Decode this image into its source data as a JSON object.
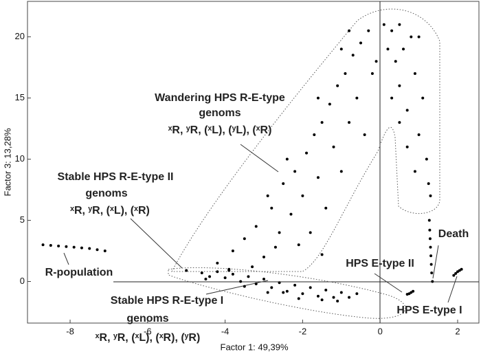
{
  "chart_data": {
    "type": "scatter",
    "xlabel": "Factor 1: 49,39%",
    "ylabel": "Factor 3: 13,28%",
    "xlim": [
      -9.1,
      2.55
    ],
    "ylim": [
      -3.4,
      22.9
    ],
    "xticks": [
      -8,
      -6,
      -4,
      -2,
      0,
      2
    ],
    "yticks": [
      0,
      5,
      10,
      15,
      20
    ],
    "color": "#000000",
    "annotations": [
      "Wandering HPS R-E-type",
      "genoms",
      "ˣR, ʸR, (ˣL), (ʸL), (ˣR)",
      "Stable HPS R-E-type II",
      "genoms",
      "ˣR, ʸR, (ˣL), (ˣR)",
      "R-population",
      "HPS E-type II",
      "Death",
      "Stable HPS R-E-type I",
      "genoms",
      "ˣR, ʸR, (ˣL), (ˣR), (ʸR)",
      "HPS E-type I"
    ],
    "x": [
      -8.7,
      -8.5,
      -8.3,
      -8.1,
      -7.9,
      -7.7,
      -7.5,
      -7.3,
      -7.1,
      -5,
      -4.6,
      -4.4,
      -4.2,
      -4,
      -3.8,
      -3.6,
      -3.4,
      -3.2,
      -3,
      -2.8,
      -2.6,
      -2.4,
      -2.2,
      -2,
      -1.8,
      -1.6,
      -1.4,
      -1.2,
      -1,
      -0.8,
      -0.6,
      -3.5,
      -2.5,
      -1.5,
      -4.5,
      -3.9,
      -2.9,
      -2.1,
      -1.1,
      -4.2,
      -3.8,
      -3.5,
      -3.2,
      -3.0,
      -2.8,
      -2.6,
      -2.5,
      -2.3,
      -2.2,
      -2,
      -1.9,
      -1.8,
      -1.7,
      -1.6,
      -1.5,
      -1.4,
      -1.3,
      -1.2,
      -1.1,
      -1,
      -0.9,
      -0.8,
      -0.7,
      -0.6,
      -0.5,
      -0.4,
      -0.3,
      -0.2,
      -0.1,
      -3.3,
      -2.7,
      -2.1,
      -1.5,
      -3.9,
      -2.4,
      -1.6,
      -1.0,
      -0.8,
      -2.9,
      0.1,
      0.2,
      0.3,
      0.4,
      0.5,
      0.5,
      0.6,
      0.7,
      0.8,
      0.9,
      1.0,
      1.1,
      1.2,
      1.25,
      1.3,
      0.9,
      0.7,
      0.3,
      1.0,
      0.5,
      1.35,
      1.33,
      1.32,
      1.31,
      1.3,
      1.29,
      1.28,
      1.27,
      0.7,
      0.75,
      0.8,
      0.85,
      1.9,
      1.95,
      2.0,
      2.05,
      2.1
    ],
    "values": [
      3.0,
      2.95,
      2.9,
      2.85,
      2.8,
      2.75,
      2.7,
      2.6,
      2.5,
      0.9,
      0.7,
      0.4,
      0.8,
      0.3,
      0.6,
      0,
      0.4,
      -0.2,
      0.2,
      -0.5,
      -0.1,
      -0.8,
      -0.3,
      -1.0,
      -0.5,
      -1.2,
      -0.7,
      -1.3,
      -0.9,
      -1.3,
      -1.0,
      -0.4,
      -0.9,
      -1.5,
      0.2,
      0.9,
      -0.9,
      -1.4,
      -1.6,
      1.5,
      2.5,
      3.5,
      4.5,
      2,
      6,
      4,
      8,
      5.5,
      9,
      7,
      10.5,
      4,
      12,
      8.5,
      13,
      6,
      14.5,
      11,
      16,
      9,
      17,
      13,
      18.5,
      15,
      19.5,
      12,
      20.5,
      17,
      18,
      1.2,
      2.8,
      3,
      2.2,
      1,
      10,
      15,
      19,
      20.5,
      7,
      21,
      19,
      20.5,
      18,
      21,
      16,
      19,
      14,
      20,
      17,
      12,
      15,
      10,
      8,
      7,
      9,
      11,
      15,
      20,
      13,
      0,
      0.7,
      1.4,
      2.1,
      2.8,
      3.5,
      4.2,
      5,
      -1.05,
      -1.0,
      -0.9,
      -0.8,
      0.5,
      0.65,
      0.8,
      0.9,
      1.0
    ]
  }
}
